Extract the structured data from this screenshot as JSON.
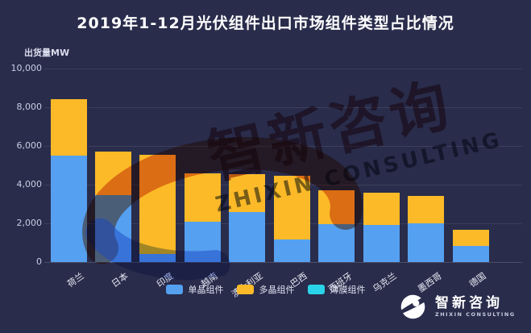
{
  "title": "2019年1-12月光伏组件出口市场组件类型占比情况",
  "y_axis_unit": "出货量MW",
  "watermark": {
    "cn": "智新咨询",
    "en": "ZHIXIN CONSULTING"
  },
  "logo": {
    "cn": "智新咨询",
    "en": "ZHIXIN CONSULTING"
  },
  "colors": {
    "background": "#292c4b",
    "mono_blue": "#55a0f0",
    "poly_yellow": "#fcba28",
    "thinfilm_cyan": "#2ad4e8",
    "watermark_red": "#c8502a",
    "watermark_blue": "#4a6fd0"
  },
  "chart_data": {
    "type": "bar",
    "stacked": true,
    "title": "2019年1-12月光伏组件出口市场组件类型占比情况",
    "ylabel": "出货量MW",
    "ylim": [
      0,
      10000
    ],
    "grid": true,
    "legend_position": "bottom",
    "categories": [
      "荷兰",
      "日本",
      "印度",
      "越南",
      "澳大利亚",
      "巴西",
      "西班牙",
      "乌克兰",
      "墨西哥",
      "德国"
    ],
    "yticks": [
      {
        "label": "0",
        "value": 0
      },
      {
        "label": "2,000",
        "value": 2000
      },
      {
        "label": "4,000",
        "value": 4000
      },
      {
        "label": "6,000",
        "value": 6000
      },
      {
        "label": "8,000",
        "value": 8000
      },
      {
        "label": "10,000",
        "value": 10000
      }
    ],
    "series": [
      {
        "name": "单晶组件",
        "color": "#55a0f0",
        "values": [
          5500,
          3450,
          400,
          2100,
          2600,
          1150,
          1950,
          1900,
          2000,
          850
        ]
      },
      {
        "name": "多晶组件",
        "color": "#fcba28",
        "values": [
          2900,
          2250,
          5150,
          2500,
          1950,
          3300,
          1750,
          1700,
          1400,
          800
        ]
      },
      {
        "name": "薄膜组件",
        "color": "#2ad4e8",
        "values": [
          0,
          0,
          0,
          0,
          0,
          0,
          0,
          0,
          0,
          0
        ]
      }
    ]
  }
}
